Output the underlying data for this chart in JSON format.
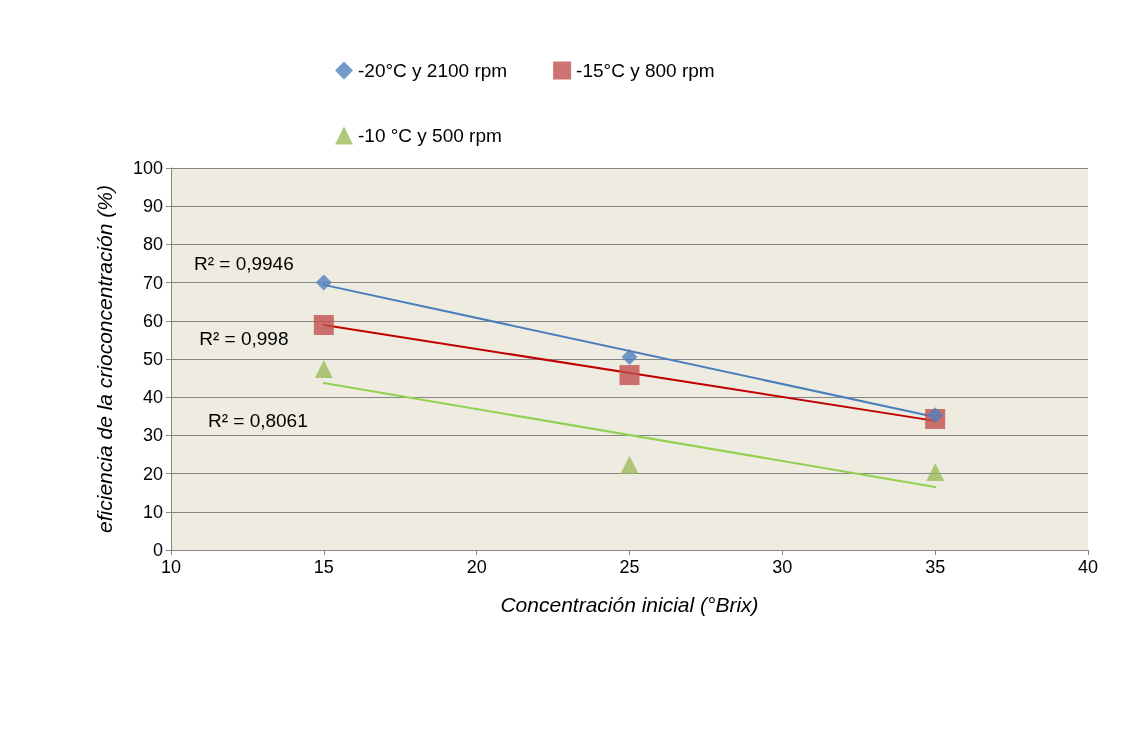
{
  "chart_data": {
    "type": "scatter",
    "xlabel": "Concentración inicial (°Brix)",
    "ylabel": "eficiencia de la crioconcentración (%)",
    "series": [
      {
        "name": "-20°C y 2100 rpm",
        "color": "#4f81bd",
        "marker": "diamond",
        "x": [
          15,
          25,
          35
        ],
        "values": [
          70,
          50.5,
          35.3
        ]
      },
      {
        "name": "-15°C y 800 rpm",
        "color": "#c0504d",
        "marker": "square",
        "x": [
          15,
          25,
          35
        ],
        "values": [
          58.9,
          45.8,
          34.3
        ]
      },
      {
        "name": "-10 °C y 500 rpm",
        "color": "#9bbb59",
        "marker": "triangle",
        "x": [
          15,
          25,
          35
        ],
        "values": [
          47.4,
          22.3,
          20.4
        ]
      },
      {
        "type": "line",
        "color": "#4a7ebb",
        "marker": "none",
        "x": [
          15,
          35
        ],
        "values": [
          69.4,
          34.8
        ]
      },
      {
        "type": "line",
        "color": "#c00000",
        "marker": "none",
        "x": [
          15,
          35
        ],
        "values": [
          58.9,
          33.8
        ]
      },
      {
        "type": "line",
        "color": "#92d050",
        "marker": "none",
        "x": [
          15,
          35
        ],
        "values": [
          43.7,
          16.5
        ]
      }
    ],
    "xlim": [
      10,
      40
    ],
    "xticks": [
      10,
      15,
      20,
      25,
      30,
      35,
      40
    ],
    "ylim": [
      0,
      100
    ],
    "yticks": [
      0,
      10,
      20,
      30,
      40,
      50,
      60,
      70,
      80,
      90,
      100
    ],
    "annotations": [
      "R² = 0,9946",
      "R² = 0,998",
      "R² = 0,8061"
    ],
    "grid": "y",
    "legend": "top"
  }
}
